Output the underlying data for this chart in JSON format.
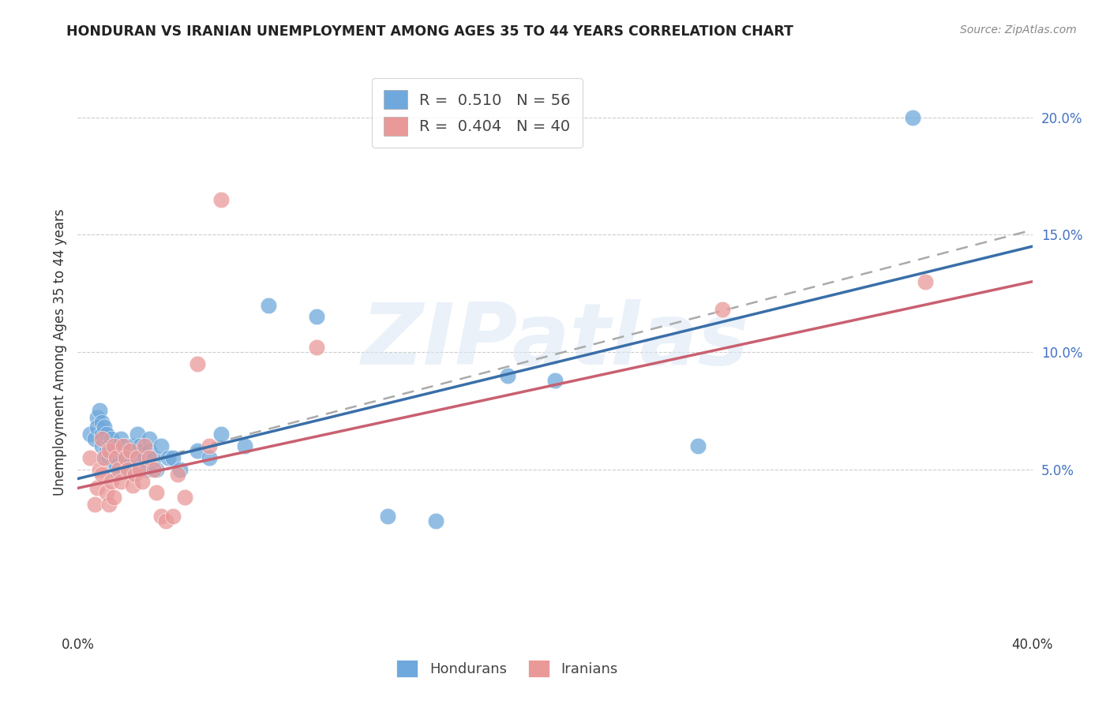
{
  "title": "HONDURAN VS IRANIAN UNEMPLOYMENT AMONG AGES 35 TO 44 YEARS CORRELATION CHART",
  "source": "Source: ZipAtlas.com",
  "ylabel": "Unemployment Among Ages 35 to 44 years",
  "xlim": [
    0.0,
    0.4
  ],
  "ylim": [
    -0.02,
    0.22
  ],
  "x_ticks": [
    0.0,
    0.05,
    0.1,
    0.15,
    0.2,
    0.25,
    0.3,
    0.35,
    0.4
  ],
  "y_ticks_right": [
    0.05,
    0.1,
    0.15,
    0.2
  ],
  "y_tick_labels_right": [
    "5.0%",
    "10.0%",
    "15.0%",
    "20.0%"
  ],
  "honduran_color": "#6fa8dc",
  "iranian_color": "#ea9999",
  "honduran_R": 0.51,
  "honduran_N": 56,
  "iranian_R": 0.404,
  "iranian_N": 40,
  "honduran_scatter": [
    [
      0.005,
      0.065
    ],
    [
      0.007,
      0.063
    ],
    [
      0.008,
      0.072
    ],
    [
      0.008,
      0.068
    ],
    [
      0.009,
      0.075
    ],
    [
      0.01,
      0.07
    ],
    [
      0.01,
      0.065
    ],
    [
      0.01,
      0.06
    ],
    [
      0.011,
      0.068
    ],
    [
      0.011,
      0.055
    ],
    [
      0.012,
      0.065
    ],
    [
      0.012,
      0.058
    ],
    [
      0.013,
      0.06
    ],
    [
      0.013,
      0.055
    ],
    [
      0.014,
      0.063
    ],
    [
      0.014,
      0.058
    ],
    [
      0.015,
      0.055
    ],
    [
      0.015,
      0.05
    ],
    [
      0.016,
      0.058
    ],
    [
      0.016,
      0.052
    ],
    [
      0.017,
      0.06
    ],
    [
      0.017,
      0.055
    ],
    [
      0.018,
      0.063
    ],
    [
      0.018,
      0.058
    ],
    [
      0.019,
      0.055
    ],
    [
      0.02,
      0.06
    ],
    [
      0.02,
      0.055
    ],
    [
      0.021,
      0.058
    ],
    [
      0.022,
      0.05
    ],
    [
      0.023,
      0.06
    ],
    [
      0.024,
      0.055
    ],
    [
      0.025,
      0.065
    ],
    [
      0.026,
      0.06
    ],
    [
      0.027,
      0.058
    ],
    [
      0.028,
      0.055
    ],
    [
      0.029,
      0.05
    ],
    [
      0.03,
      0.063
    ],
    [
      0.03,
      0.058
    ],
    [
      0.032,
      0.055
    ],
    [
      0.033,
      0.05
    ],
    [
      0.035,
      0.06
    ],
    [
      0.038,
      0.055
    ],
    [
      0.04,
      0.055
    ],
    [
      0.043,
      0.05
    ],
    [
      0.05,
      0.058
    ],
    [
      0.055,
      0.055
    ],
    [
      0.06,
      0.065
    ],
    [
      0.07,
      0.06
    ],
    [
      0.08,
      0.12
    ],
    [
      0.1,
      0.115
    ],
    [
      0.13,
      0.03
    ],
    [
      0.15,
      0.028
    ],
    [
      0.18,
      0.09
    ],
    [
      0.2,
      0.088
    ],
    [
      0.26,
      0.06
    ],
    [
      0.35,
      0.2
    ]
  ],
  "iranian_scatter": [
    [
      0.005,
      0.055
    ],
    [
      0.007,
      0.035
    ],
    [
      0.008,
      0.042
    ],
    [
      0.009,
      0.05
    ],
    [
      0.01,
      0.063
    ],
    [
      0.01,
      0.048
    ],
    [
      0.011,
      0.055
    ],
    [
      0.012,
      0.04
    ],
    [
      0.013,
      0.058
    ],
    [
      0.013,
      0.035
    ],
    [
      0.014,
      0.045
    ],
    [
      0.015,
      0.06
    ],
    [
      0.015,
      0.038
    ],
    [
      0.016,
      0.055
    ],
    [
      0.017,
      0.05
    ],
    [
      0.018,
      0.045
    ],
    [
      0.019,
      0.06
    ],
    [
      0.02,
      0.055
    ],
    [
      0.021,
      0.05
    ],
    [
      0.022,
      0.058
    ],
    [
      0.023,
      0.043
    ],
    [
      0.024,
      0.048
    ],
    [
      0.025,
      0.055
    ],
    [
      0.026,
      0.05
    ],
    [
      0.027,
      0.045
    ],
    [
      0.028,
      0.06
    ],
    [
      0.03,
      0.055
    ],
    [
      0.032,
      0.05
    ],
    [
      0.033,
      0.04
    ],
    [
      0.035,
      0.03
    ],
    [
      0.037,
      0.028
    ],
    [
      0.04,
      0.03
    ],
    [
      0.042,
      0.048
    ],
    [
      0.045,
      0.038
    ],
    [
      0.05,
      0.095
    ],
    [
      0.055,
      0.06
    ],
    [
      0.06,
      0.165
    ],
    [
      0.1,
      0.102
    ],
    [
      0.27,
      0.118
    ],
    [
      0.355,
      0.13
    ]
  ],
  "honduran_line": {
    "x0": 0.0,
    "y0": 0.046,
    "x1": 0.4,
    "y1": 0.145
  },
  "iranian_line": {
    "x0": 0.0,
    "y0": 0.042,
    "x1": 0.4,
    "y1": 0.13
  },
  "dashed_line": {
    "x0": 0.0,
    "y0": 0.046,
    "x1": 0.4,
    "y1": 0.152
  },
  "grid_color": "#cccccc",
  "background_color": "#ffffff",
  "watermark": "ZIPatlas"
}
